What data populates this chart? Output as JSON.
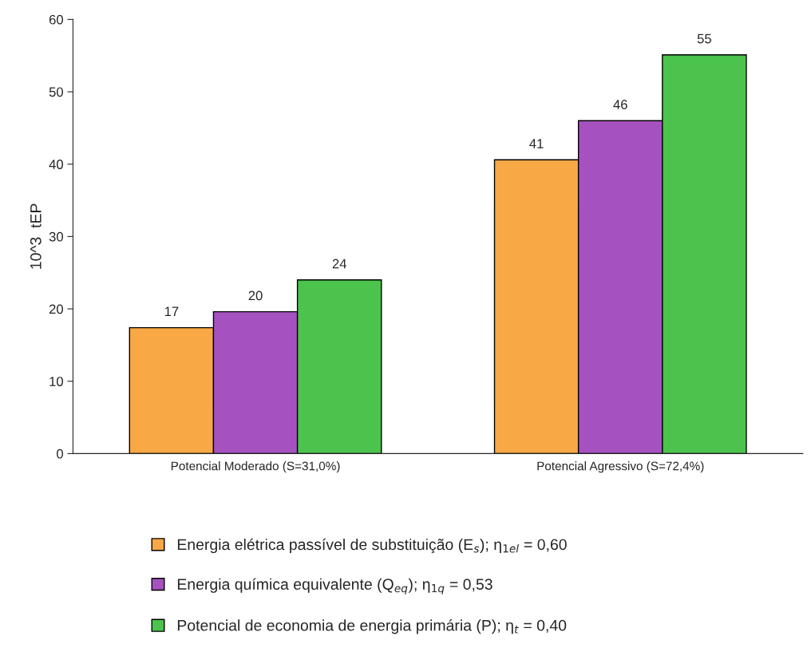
{
  "chart_data": {
    "type": "bar",
    "ylabel": "10^3  tEP",
    "categories": [
      "Potencial Moderado (S=31,0%)",
      "Potencial Agressivo (S=72,4%)"
    ],
    "series": [
      {
        "name": "Energia elétrica passível de substituição (E$_{s}$); η$_{1el}$ = 0,60",
        "color": "#f8a845",
        "values": [
          17.4,
          40.6
        ],
        "value_labels": [
          "17",
          "41"
        ]
      },
      {
        "name": "Energia química equivalente (Q$_{eq}$); η$_{1q}$ = 0,53",
        "color": "#a552c0",
        "values": [
          19.6,
          46.0
        ],
        "value_labels": [
          "20",
          "46"
        ]
      },
      {
        "name": "Potencial de economia de energia primária (P); η$_{t}$ = 0,40",
        "color": "#4cc34c",
        "values": [
          24.0,
          55.1
        ],
        "value_labels": [
          "24",
          "55"
        ]
      }
    ],
    "ylim": [
      0,
      60
    ],
    "yticks": [
      0,
      10,
      20,
      30,
      40,
      50,
      60
    ],
    "grid": false,
    "legend": "bottom"
  }
}
